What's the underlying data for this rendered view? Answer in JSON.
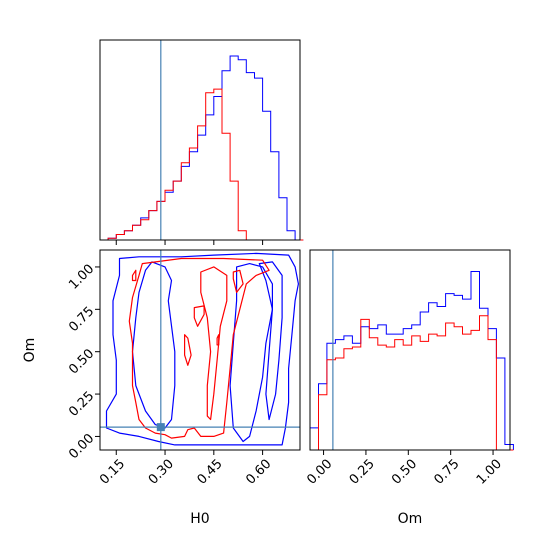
{
  "chart_data": {
    "type": "corner",
    "parameters": [
      "H0",
      "Om"
    ],
    "truth": {
      "H0": 0.287,
      "Om": 0.055
    },
    "colors": {
      "blue": "#0000ff",
      "red": "#ff0000",
      "truth": "#4682b4"
    },
    "hist_H0": {
      "type": "histogram",
      "bins_start": 0.1,
      "bin_width": 0.025,
      "xlim": [
        0.1,
        0.715
      ],
      "series": [
        {
          "color": "blue",
          "values": [
            0.0,
            0.01,
            0.03,
            0.05,
            0.08,
            0.12,
            0.16,
            0.21,
            0.26,
            0.32,
            0.4,
            0.48,
            0.57,
            0.68,
            0.78,
            0.92,
            1.0,
            0.98,
            0.91,
            0.88,
            0.7,
            0.48,
            0.23,
            0.05,
            0.0
          ]
        },
        {
          "color": "red",
          "values": [
            0.0,
            0.01,
            0.03,
            0.05,
            0.08,
            0.11,
            0.16,
            0.21,
            0.27,
            0.32,
            0.42,
            0.5,
            0.62,
            0.8,
            0.82,
            0.58,
            0.32,
            0.05,
            0.0,
            0.0,
            0.0,
            0.0,
            0.0,
            0.0,
            0.0
          ]
        }
      ]
    },
    "hist_Om": {
      "type": "histogram",
      "bins_start": -0.08,
      "bin_width": 0.05,
      "xlim": [
        -0.08,
        1.1
      ],
      "series": [
        {
          "color": "blue",
          "values": [
            0.12,
            0.36,
            0.58,
            0.6,
            0.62,
            0.58,
            0.67,
            0.66,
            0.68,
            0.63,
            0.63,
            0.66,
            0.68,
            0.75,
            0.8,
            0.78,
            0.85,
            0.84,
            0.82,
            0.97,
            0.77,
            0.66,
            0.5,
            0.03
          ]
        },
        {
          "color": "red",
          "values": [
            0.0,
            0.3,
            0.49,
            0.5,
            0.55,
            0.56,
            0.71,
            0.61,
            0.57,
            0.56,
            0.6,
            0.57,
            0.62,
            0.59,
            0.63,
            0.62,
            0.69,
            0.67,
            0.63,
            0.65,
            0.73,
            0.6,
            0.0,
            0.0
          ]
        }
      ]
    },
    "contours": {
      "xlim": [
        0.1,
        0.715
      ],
      "ylim": [
        -0.08,
        1.1
      ],
      "xticks": [
        {
          "value": 0.15,
          "label": "0.15"
        },
        {
          "value": 0.3,
          "label": "0.30"
        },
        {
          "value": 0.45,
          "label": "0.45"
        },
        {
          "value": 0.6,
          "label": "0.60"
        }
      ],
      "yticks": [
        {
          "value": 0.0,
          "label": "0.00"
        },
        {
          "value": 0.25,
          "label": "0.25"
        },
        {
          "value": 0.5,
          "label": "0.50"
        },
        {
          "value": 0.75,
          "label": "0.75"
        },
        {
          "value": 1.0,
          "label": "1.00"
        }
      ],
      "series": [
        {
          "color": "blue",
          "paths": [
            [
              [
                0.16,
                1.05
              ],
              [
                0.22,
                1.06
              ],
              [
                0.35,
                1.06
              ],
              [
                0.45,
                1.07
              ],
              [
                0.58,
                1.08
              ],
              [
                0.68,
                1.07
              ],
              [
                0.7,
                1.0
              ],
              [
                0.71,
                0.9
              ],
              [
                0.7,
                0.8
              ],
              [
                0.69,
                0.6
              ],
              [
                0.68,
                0.4
              ],
              [
                0.68,
                0.2
              ],
              [
                0.67,
                0.05
              ],
              [
                0.66,
                -0.05
              ],
              [
                0.6,
                -0.05
              ],
              [
                0.45,
                -0.05
              ],
              [
                0.33,
                -0.05
              ],
              [
                0.28,
                -0.03
              ],
              [
                0.22,
                0.0
              ],
              [
                0.16,
                0.02
              ],
              [
                0.12,
                0.05
              ],
              [
                0.12,
                0.15
              ],
              [
                0.15,
                0.25
              ],
              [
                0.15,
                0.45
              ],
              [
                0.14,
                0.6
              ],
              [
                0.14,
                0.8
              ],
              [
                0.16,
                0.95
              ],
              [
                0.16,
                1.05
              ]
            ],
            [
              [
                0.26,
                1.03
              ],
              [
                0.3,
                1.0
              ],
              [
                0.32,
                0.92
              ],
              [
                0.31,
                0.8
              ],
              [
                0.33,
                0.5
              ],
              [
                0.33,
                0.3
              ],
              [
                0.32,
                0.1
              ],
              [
                0.3,
                0.05
              ],
              [
                0.27,
                0.07
              ],
              [
                0.24,
                0.15
              ],
              [
                0.21,
                0.3
              ],
              [
                0.2,
                0.5
              ],
              [
                0.21,
                0.7
              ],
              [
                0.22,
                0.85
              ],
              [
                0.24,
                0.98
              ],
              [
                0.26,
                1.03
              ]
            ],
            [
              [
                0.52,
                1.0
              ],
              [
                0.56,
                1.02
              ],
              [
                0.6,
                1.0
              ],
              [
                0.63,
                0.9
              ],
              [
                0.63,
                0.75
              ],
              [
                0.61,
                0.55
              ],
              [
                0.6,
                0.35
              ],
              [
                0.58,
                0.15
              ],
              [
                0.56,
                0.0
              ],
              [
                0.54,
                -0.03
              ],
              [
                0.51,
                0.05
              ],
              [
                0.5,
                0.3
              ],
              [
                0.51,
                0.55
              ],
              [
                0.52,
                0.8
              ],
              [
                0.52,
                1.0
              ]
            ],
            [
              [
                0.59,
                1.02
              ],
              [
                0.63,
                1.03
              ],
              [
                0.66,
                0.95
              ],
              [
                0.66,
                0.7
              ],
              [
                0.65,
                0.45
              ],
              [
                0.64,
                0.25
              ],
              [
                0.62,
                0.1
              ],
              [
                0.61,
                0.25
              ],
              [
                0.62,
                0.5
              ],
              [
                0.63,
                0.75
              ],
              [
                0.61,
                0.92
              ],
              [
                0.59,
                1.02
              ]
            ]
          ]
        },
        {
          "color": "red",
          "paths": [
            [
              [
                0.23,
                1.02
              ],
              [
                0.35,
                1.05
              ],
              [
                0.48,
                1.05
              ],
              [
                0.6,
                1.04
              ],
              [
                0.62,
                0.98
              ],
              [
                0.58,
                0.95
              ],
              [
                0.55,
                0.9
              ],
              [
                0.53,
                0.75
              ],
              [
                0.51,
                0.6
              ],
              [
                0.5,
                0.4
              ],
              [
                0.49,
                0.2
              ],
              [
                0.48,
                0.02
              ],
              [
                0.45,
                0.0
              ],
              [
                0.41,
                0.0
              ],
              [
                0.39,
                0.05
              ],
              [
                0.37,
                0.04
              ],
              [
                0.36,
                0.0
              ],
              [
                0.32,
                -0.01
              ],
              [
                0.3,
                0.01
              ],
              [
                0.27,
                0.02
              ],
              [
                0.24,
                0.05
              ],
              [
                0.22,
                0.1
              ],
              [
                0.21,
                0.2
              ],
              [
                0.2,
                0.3
              ],
              [
                0.2,
                0.42
              ],
              [
                0.2,
                0.55
              ],
              [
                0.19,
                0.68
              ],
              [
                0.2,
                0.82
              ],
              [
                0.22,
                0.95
              ],
              [
                0.23,
                1.02
              ]
            ],
            [
              [
                0.41,
                0.97
              ],
              [
                0.45,
                1.0
              ],
              [
                0.49,
                0.95
              ],
              [
                0.49,
                0.8
              ],
              [
                0.47,
                0.65
              ],
              [
                0.46,
                0.45
              ],
              [
                0.45,
                0.25
              ],
              [
                0.44,
                0.1
              ],
              [
                0.43,
                0.12
              ],
              [
                0.43,
                0.3
              ],
              [
                0.44,
                0.5
              ],
              [
                0.43,
                0.7
              ],
              [
                0.41,
                0.85
              ],
              [
                0.41,
                0.97
              ]
            ],
            [
              [
                0.51,
                0.97
              ],
              [
                0.53,
                0.98
              ],
              [
                0.54,
                0.9
              ],
              [
                0.52,
                0.85
              ],
              [
                0.51,
                0.93
              ],
              [
                0.51,
                0.97
              ]
            ],
            [
              [
                0.39,
                0.76
              ],
              [
                0.42,
                0.77
              ],
              [
                0.42,
                0.72
              ],
              [
                0.4,
                0.65
              ],
              [
                0.39,
                0.7
              ],
              [
                0.39,
                0.76
              ]
            ],
            [
              [
                0.36,
                0.6
              ],
              [
                0.37,
                0.58
              ],
              [
                0.38,
                0.48
              ],
              [
                0.37,
                0.42
              ],
              [
                0.36,
                0.48
              ],
              [
                0.36,
                0.6
              ]
            ],
            [
              [
                0.2,
                0.95
              ],
              [
                0.21,
                0.98
              ],
              [
                0.21,
                0.92
              ],
              [
                0.2,
                0.92
              ],
              [
                0.2,
                0.95
              ]
            ],
            [
              [
                0.46,
                0.58
              ],
              [
                0.465,
                0.6
              ],
              [
                0.465,
                0.54
              ],
              [
                0.46,
                0.54
              ],
              [
                0.46,
                0.58
              ]
            ]
          ]
        }
      ]
    },
    "hist_Om_xticks": [
      {
        "value": 0.0,
        "label": "0.00"
      },
      {
        "value": 0.25,
        "label": "0.25"
      },
      {
        "value": 0.5,
        "label": "0.50"
      },
      {
        "value": 0.75,
        "label": "0.75"
      },
      {
        "value": 1.0,
        "label": "1.00"
      }
    ],
    "labels": {
      "x_left": "H0",
      "x_right": "Om",
      "y_left": "Om"
    }
  }
}
